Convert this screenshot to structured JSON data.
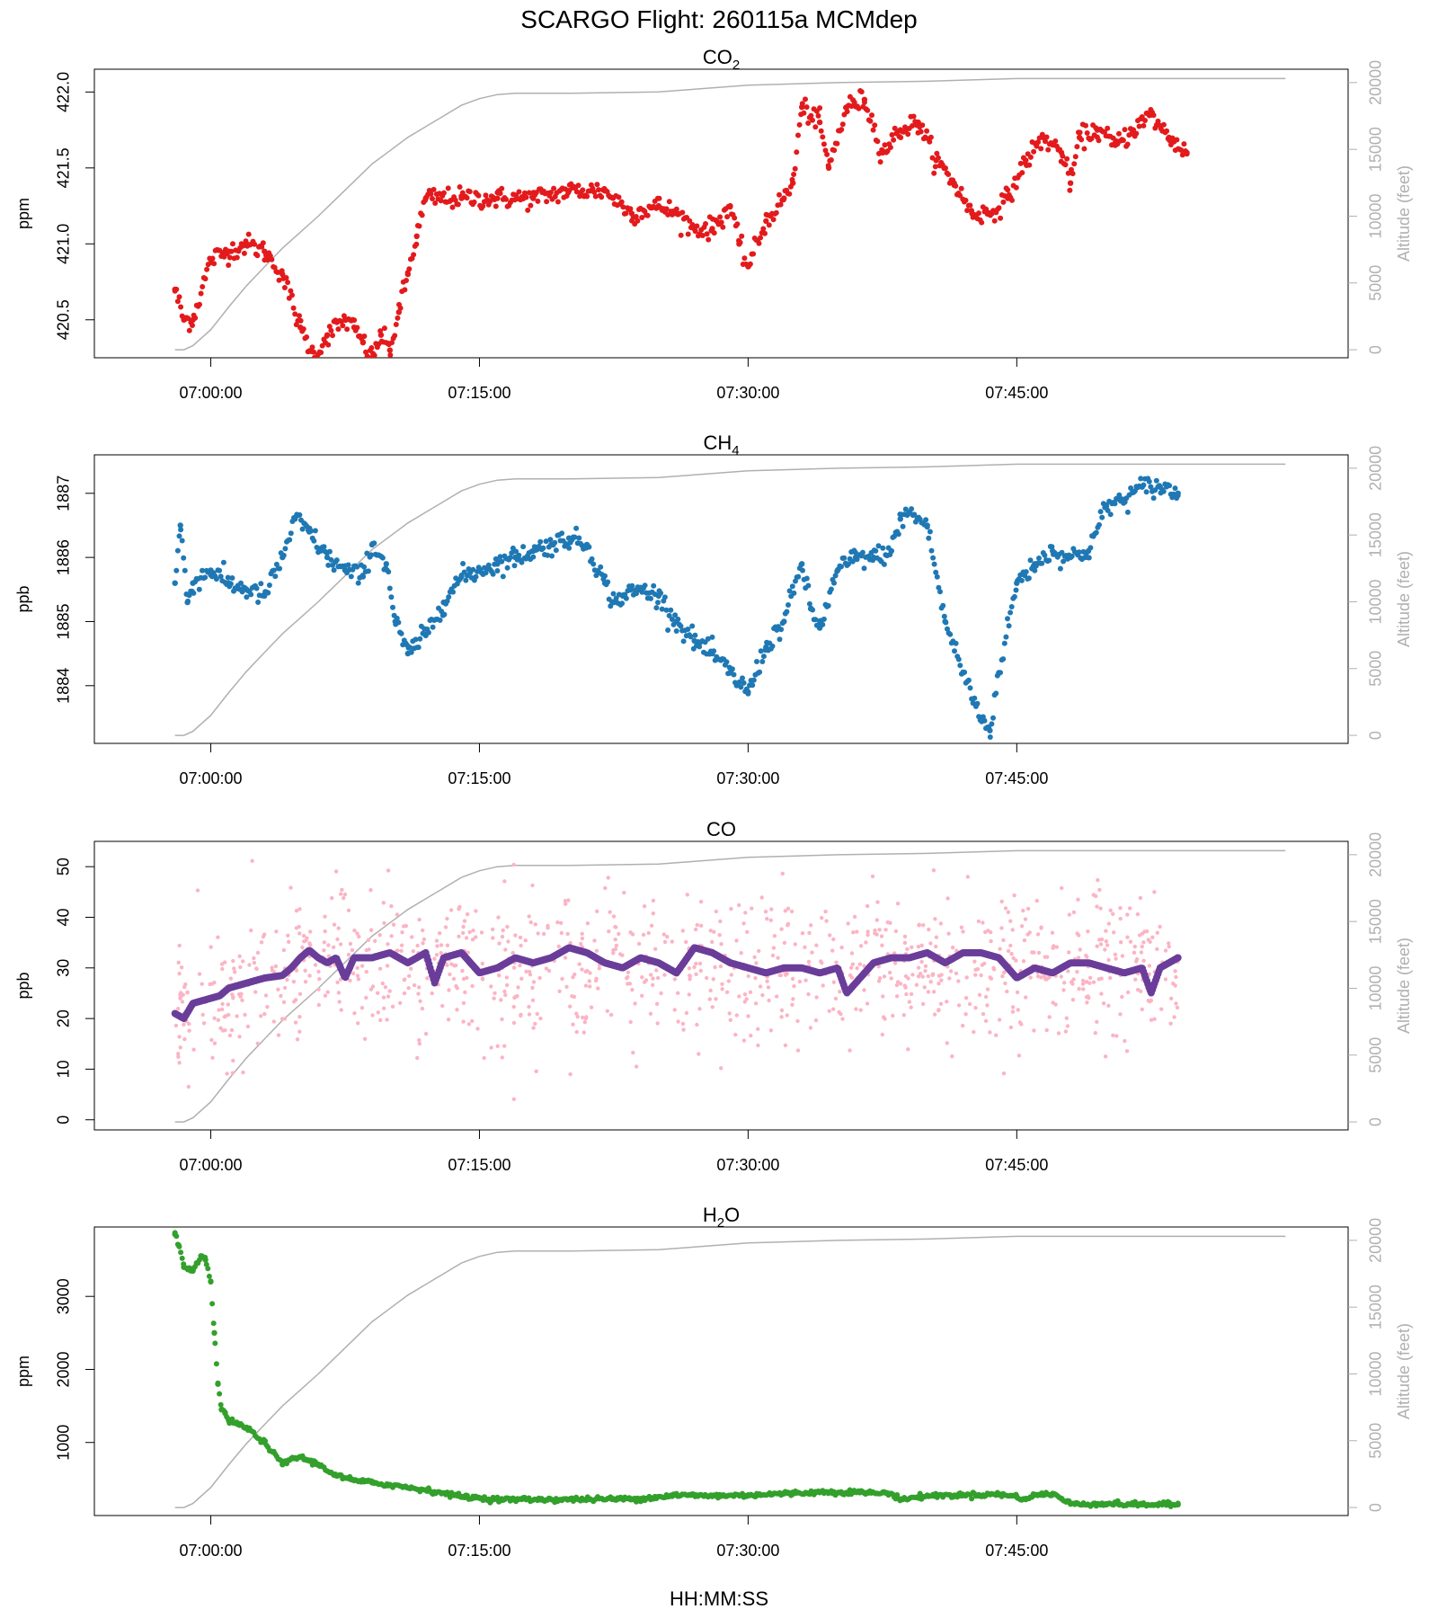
{
  "title": "SCARGO Flight: 260115a  MCMdep",
  "xlabel": "HH:MM:SS",
  "altitude_label": "Altitude (feet)",
  "colors": {
    "altitude": "#b0b0b0",
    "co2": "#e31a1c",
    "ch4": "#1f78b4",
    "co_raw": "#fbb4c4",
    "co_smooth": "#6a3d9a",
    "h2o": "#33a02c"
  },
  "chart_data": [
    {
      "type": "scatter",
      "name": "co2",
      "title": "CO",
      "subscript": "2",
      "ylabel": "ppm",
      "ylim": [
        420.25,
        422.15
      ],
      "yticks": [
        420.5,
        421.0,
        421.5,
        422.0
      ],
      "ytick_labels": [
        "420.5",
        "421.0",
        "421.5",
        "422.0"
      ],
      "xlim_min": [
        -6.5,
        63.5
      ],
      "xticks_min": [
        0,
        15,
        30,
        45
      ],
      "xtick_labels": [
        "07:00:00",
        "07:15:00",
        "07:30:00",
        "07:45:00"
      ],
      "altitude_ticks": [
        0,
        5000,
        10000,
        15000,
        20000
      ],
      "altitude_tick_labels": [
        "0",
        "5000",
        "10000",
        "15000",
        "20000"
      ],
      "altitude_lim": [
        -600,
        21000
      ],
      "series": [
        {
          "name": "CO2",
          "color_key": "co2",
          "x_min": [
            -2.0,
            -1.5,
            -1.0,
            0.0,
            1.0,
            2.0,
            3.0,
            4.0,
            5.0,
            5.8,
            6.5,
            7.5,
            8.0,
            8.5,
            9.0,
            9.5,
            10.0,
            10.5,
            11.0,
            11.5,
            12.0,
            14.0,
            16.0,
            18.0,
            20.0,
            22.0,
            23.5,
            25.0,
            26.0,
            27.0,
            28.0,
            29.0,
            29.5,
            30.0,
            31.0,
            32.0,
            32.5,
            33.0,
            34.0,
            34.5,
            35.5,
            36.5,
            37.5,
            38.5,
            39.5,
            40.5,
            41.5,
            42.5,
            43.5,
            44.5,
            45.5,
            46.5,
            47.5,
            48.0,
            48.5,
            49.5,
            50.5,
            51.5,
            52.5,
            53.5,
            54.5
          ],
          "y": [
            420.7,
            420.5,
            420.5,
            420.9,
            420.95,
            421.0,
            420.95,
            420.8,
            420.45,
            420.25,
            420.4,
            420.5,
            420.45,
            420.35,
            420.25,
            420.4,
            420.3,
            420.55,
            420.8,
            421.05,
            421.3,
            421.3,
            421.3,
            421.3,
            421.35,
            421.35,
            421.2,
            421.25,
            421.2,
            421.1,
            421.1,
            421.25,
            421.0,
            420.85,
            421.15,
            421.3,
            421.4,
            421.9,
            421.8,
            421.5,
            421.9,
            421.95,
            421.6,
            421.75,
            421.8,
            421.55,
            421.4,
            421.2,
            421.2,
            421.3,
            421.55,
            421.7,
            421.6,
            421.4,
            421.7,
            421.75,
            421.65,
            421.75,
            421.85,
            421.7,
            421.6
          ]
        }
      ],
      "altitude": {
        "x_min": [
          -2,
          -1.5,
          -1,
          0,
          1,
          2,
          3,
          4,
          5,
          6,
          7,
          8,
          9,
          10,
          11,
          12,
          13,
          14,
          15,
          16,
          17,
          20,
          25,
          27,
          30,
          35,
          40,
          45,
          50,
          55,
          60
        ],
        "y_ft": [
          0,
          0,
          300,
          1500,
          3200,
          4800,
          6200,
          7600,
          8800,
          10000,
          11300,
          12600,
          13900,
          14900,
          15900,
          16700,
          17500,
          18300,
          18800,
          19100,
          19200,
          19200,
          19300,
          19500,
          19800,
          20000,
          20100,
          20300,
          20300,
          20300,
          20300
        ]
      }
    },
    {
      "type": "scatter",
      "name": "ch4",
      "title": "CH",
      "subscript": "4",
      "ylabel": "ppb",
      "ylim": [
        1883.1,
        1887.6
      ],
      "yticks": [
        1884,
        1885,
        1886,
        1887
      ],
      "ytick_labels": [
        "1884",
        "1885",
        "1886",
        "1887"
      ],
      "xlim_min": [
        -6.5,
        63.5
      ],
      "xticks_min": [
        0,
        15,
        30,
        45
      ],
      "xtick_labels": [
        "07:00:00",
        "07:15:00",
        "07:30:00",
        "07:45:00"
      ],
      "altitude_ticks": [
        0,
        5000,
        10000,
        15000,
        20000
      ],
      "altitude_tick_labels": [
        "0",
        "5000",
        "10000",
        "15000",
        "20000"
      ],
      "altitude_lim": [
        -600,
        21000
      ],
      "series": [
        {
          "name": "CH4",
          "color_key": "ch4",
          "x_min": [
            -2.0,
            -1.7,
            -1.3,
            -1.0,
            0.0,
            1.0,
            2.0,
            3.0,
            4.0,
            4.7,
            5.5,
            6.5,
            7.5,
            8.5,
            9.0,
            9.8,
            10.3,
            11.0,
            12.0,
            13.0,
            14.0,
            15.0,
            16.0,
            17.0,
            18.0,
            19.0,
            20.0,
            21.0,
            22.0,
            22.5,
            23.0,
            24.0,
            25.0,
            26.0,
            27.0,
            28.0,
            29.0,
            30.0,
            31.0,
            32.0,
            33.0,
            33.5,
            34.0,
            35.0,
            36.0,
            37.0,
            38.0,
            38.5,
            39.0,
            40.0,
            41.0,
            42.0,
            43.0,
            43.5,
            44.0,
            45.0,
            46.0,
            47.0,
            48.0,
            49.0,
            50.0,
            51.0,
            52.0,
            53.0,
            54.0
          ],
          "y": [
            1885.6,
            1886.5,
            1885.3,
            1885.6,
            1885.8,
            1885.6,
            1885.5,
            1885.4,
            1886.0,
            1886.6,
            1886.4,
            1886.0,
            1885.8,
            1885.7,
            1886.2,
            1885.9,
            1885.0,
            1884.5,
            1884.8,
            1885.3,
            1885.7,
            1885.8,
            1885.9,
            1886.0,
            1886.1,
            1886.2,
            1886.3,
            1886.2,
            1885.6,
            1885.3,
            1885.4,
            1885.5,
            1885.4,
            1885.0,
            1884.7,
            1884.5,
            1884.2,
            1883.9,
            1884.6,
            1885.0,
            1885.9,
            1885.2,
            1884.9,
            1885.8,
            1886.0,
            1886.0,
            1886.1,
            1886.6,
            1886.7,
            1886.5,
            1885.0,
            1884.2,
            1883.5,
            1883.3,
            1884.2,
            1885.6,
            1885.9,
            1886.1,
            1886.0,
            1886.1,
            1886.8,
            1886.9,
            1887.1,
            1887.1,
            1887.0
          ]
        }
      ],
      "altitude": {
        "x_min": [
          -2,
          -1.5,
          -1,
          0,
          1,
          2,
          3,
          4,
          5,
          6,
          7,
          8,
          9,
          10,
          11,
          12,
          13,
          14,
          15,
          16,
          17,
          20,
          25,
          27,
          30,
          35,
          40,
          45,
          50,
          55,
          60
        ],
        "y_ft": [
          0,
          0,
          300,
          1500,
          3200,
          4800,
          6200,
          7600,
          8800,
          10000,
          11300,
          12600,
          13900,
          14900,
          15900,
          16700,
          17500,
          18300,
          18800,
          19100,
          19200,
          19200,
          19300,
          19500,
          19800,
          20000,
          20100,
          20300,
          20300,
          20300,
          20300
        ]
      }
    },
    {
      "type": "scatter",
      "name": "co",
      "title": "CO",
      "subscript": "",
      "ylabel": "ppb",
      "ylim": [
        -2,
        55
      ],
      "yticks": [
        0,
        10,
        20,
        30,
        40,
        50
      ],
      "ytick_labels": [
        "0",
        "10",
        "20",
        "30",
        "40",
        "50"
      ],
      "xlim_min": [
        -6.5,
        63.5
      ],
      "xticks_min": [
        0,
        15,
        30,
        45
      ],
      "xtick_labels": [
        "07:00:00",
        "07:15:00",
        "07:30:00",
        "07:45:00"
      ],
      "altitude_ticks": [
        0,
        5000,
        10000,
        15000,
        20000
      ],
      "altitude_tick_labels": [
        "0",
        "5000",
        "10000",
        "15000",
        "20000"
      ],
      "altitude_lim": [
        -600,
        21000
      ],
      "series": [
        {
          "name": "CO raw",
          "color_key": "co_raw",
          "x_min": [
            -2.0,
            0.0,
            2.0,
            4.0,
            6.0,
            10.0,
            15.0,
            20.0,
            25.0,
            30.0,
            35.0,
            40.0,
            45.0,
            50.0,
            54.0
          ],
          "y": [
            20,
            24,
            27,
            29,
            31,
            31,
            30,
            31,
            30,
            30,
            29,
            31,
            30,
            30,
            30
          ],
          "noise_sd": 7
        },
        {
          "name": "CO smoothed",
          "color_key": "co_smooth",
          "x_min": [
            -2.0,
            -1.5,
            -1.0,
            0.0,
            0.5,
            1.0,
            2.0,
            3.0,
            4.0,
            4.5,
            5.0,
            5.5,
            6.0,
            6.5,
            7.0,
            7.5,
            8.0,
            9.0,
            10.0,
            11.0,
            12.0,
            12.5,
            13.0,
            14.0,
            15.0,
            16.0,
            17.0,
            18.0,
            19.0,
            20.0,
            21.0,
            22.0,
            23.0,
            24.0,
            25.0,
            26.0,
            27.0,
            28.0,
            29.0,
            30.0,
            31.0,
            32.0,
            33.0,
            34.0,
            35.0,
            35.5,
            36.0,
            37.0,
            38.0,
            39.0,
            40.0,
            41.0,
            42.0,
            43.0,
            44.0,
            45.0,
            46.0,
            47.0,
            48.0,
            49.0,
            50.0,
            51.0,
            52.0,
            52.5,
            53.0,
            54.0
          ],
          "y": [
            21,
            20,
            23,
            24,
            24.5,
            26,
            27,
            28,
            28.5,
            30,
            32,
            33.5,
            32,
            31,
            32,
            28,
            32,
            32,
            33,
            31,
            33,
            27,
            32,
            33,
            29,
            30,
            32,
            31,
            32,
            34,
            33,
            31,
            30,
            32,
            31,
            29,
            34,
            33,
            31,
            30,
            29,
            30,
            30,
            29,
            30,
            25,
            27,
            31,
            32,
            32,
            33,
            31,
            33,
            33,
            32,
            28,
            30,
            29,
            31,
            31,
            30,
            29,
            30,
            25,
            30,
            32
          ]
        }
      ],
      "altitude": {
        "x_min": [
          -2,
          -1.5,
          -1,
          0,
          1,
          2,
          3,
          4,
          5,
          6,
          7,
          8,
          9,
          10,
          11,
          12,
          13,
          14,
          15,
          16,
          17,
          20,
          25,
          27,
          30,
          35,
          40,
          45,
          50,
          55,
          60
        ],
        "y_ft": [
          0,
          0,
          300,
          1500,
          3200,
          4800,
          6200,
          7600,
          8800,
          10000,
          11300,
          12600,
          13900,
          14900,
          15900,
          16700,
          17500,
          18300,
          18800,
          19100,
          19200,
          19200,
          19300,
          19500,
          19800,
          20000,
          20100,
          20300,
          20300,
          20300,
          20300
        ]
      }
    },
    {
      "type": "scatter",
      "name": "h2o",
      "title": "H",
      "subscript": "2",
      "title_suffix": "O",
      "ylabel": "ppm",
      "ylim": [
        0,
        3950
      ],
      "yticks": [
        1000,
        2000,
        3000
      ],
      "ytick_labels": [
        "1000",
        "2000",
        "3000"
      ],
      "xlim_min": [
        -6.5,
        63.5
      ],
      "xticks_min": [
        0,
        15,
        30,
        45
      ],
      "xtick_labels": [
        "07:00:00",
        "07:15:00",
        "07:30:00",
        "07:45:00"
      ],
      "altitude_ticks": [
        0,
        5000,
        10000,
        15000,
        20000
      ],
      "altitude_tick_labels": [
        "0",
        "5000",
        "10000",
        "15000",
        "20000"
      ],
      "altitude_lim": [
        -600,
        21000
      ],
      "series": [
        {
          "name": "H2O",
          "color_key": "h2o",
          "x_min": [
            -2.0,
            -1.8,
            -1.5,
            -1.0,
            -0.5,
            -0.3,
            0.0,
            0.2,
            0.4,
            0.6,
            0.8,
            1.0,
            1.5,
            2.0,
            3.0,
            4.0,
            4.5,
            5.0,
            5.5,
            6.0,
            7.0,
            8.0,
            9.0,
            10.0,
            12.0,
            14.0,
            15.0,
            16.0,
            20.0,
            24.0,
            26.0,
            28.0,
            30.0,
            32.0,
            34.0,
            36.0,
            38.0,
            38.5,
            40.0,
            42.0,
            44.0,
            45.0,
            45.5,
            46.0,
            47.0,
            47.5,
            48.0,
            50.0,
            52.0,
            54.0
          ],
          "y": [
            3850,
            3700,
            3400,
            3350,
            3550,
            3500,
            3200,
            2500,
            1800,
            1450,
            1400,
            1300,
            1250,
            1200,
            1000,
            700,
            780,
            800,
            750,
            700,
            550,
            480,
            450,
            420,
            350,
            260,
            240,
            220,
            220,
            230,
            280,
            270,
            280,
            300,
            320,
            320,
            300,
            220,
            270,
            280,
            290,
            260,
            220,
            280,
            300,
            230,
            160,
            160,
            150,
            150
          ]
        }
      ],
      "altitude": {
        "x_min": [
          -2,
          -1.5,
          -1,
          0,
          1,
          2,
          3,
          4,
          5,
          6,
          7,
          8,
          9,
          10,
          11,
          12,
          13,
          14,
          15,
          16,
          17,
          20,
          25,
          27,
          30,
          35,
          40,
          45,
          50,
          55,
          60
        ],
        "y_ft": [
          0,
          0,
          300,
          1500,
          3200,
          4800,
          6200,
          7600,
          8800,
          10000,
          11300,
          12600,
          13900,
          14900,
          15900,
          16700,
          17500,
          18300,
          18800,
          19100,
          19200,
          19200,
          19300,
          19500,
          19800,
          20000,
          20100,
          20300,
          20300,
          20300,
          20300
        ]
      }
    }
  ]
}
